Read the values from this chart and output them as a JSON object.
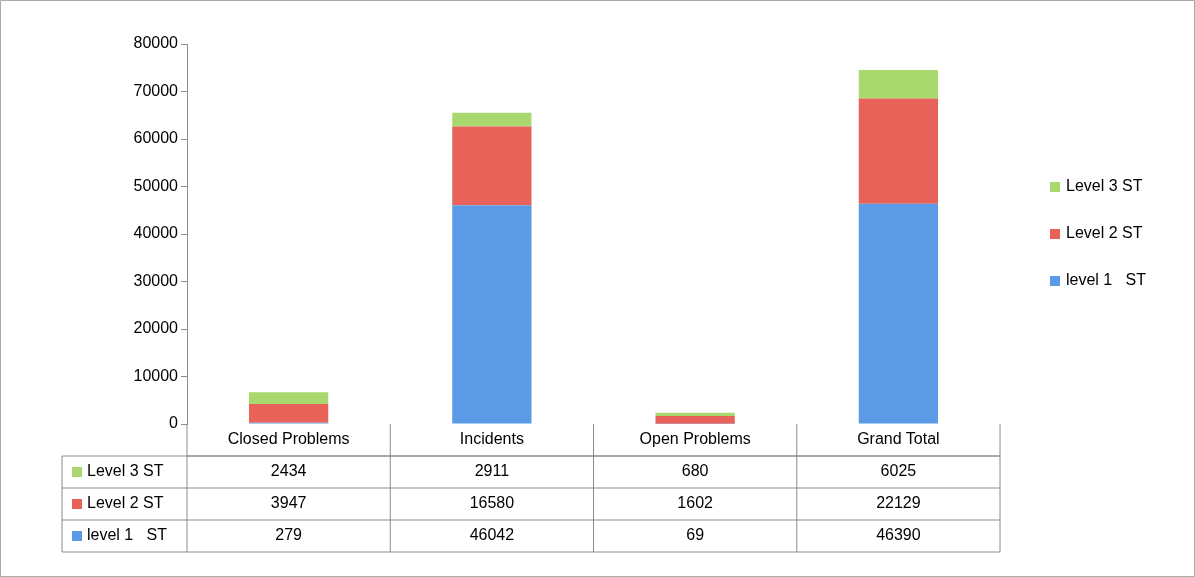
{
  "chart_data": {
    "type": "bar",
    "stacked": true,
    "categories": [
      "Closed Problems",
      "Incidents",
      "Open Problems",
      "Grand Total"
    ],
    "series": [
      {
        "name": "level 1   ST",
        "color": "#5b9be6",
        "values": [
          279,
          46042,
          69,
          46390
        ]
      },
      {
        "name": "Level 2 ST",
        "color": "#e8625a",
        "values": [
          3947,
          16580,
          1602,
          22129
        ]
      },
      {
        "name": "Level 3 ST",
        "color": "#a9d86e",
        "values": [
          2434,
          2911,
          680,
          6025
        ]
      }
    ],
    "ylim": [
      0,
      80000
    ],
    "yticks": [
      0,
      10000,
      20000,
      30000,
      40000,
      50000,
      60000,
      70000,
      80000
    ],
    "grid": false,
    "legend": "right",
    "data_labels": true
  }
}
